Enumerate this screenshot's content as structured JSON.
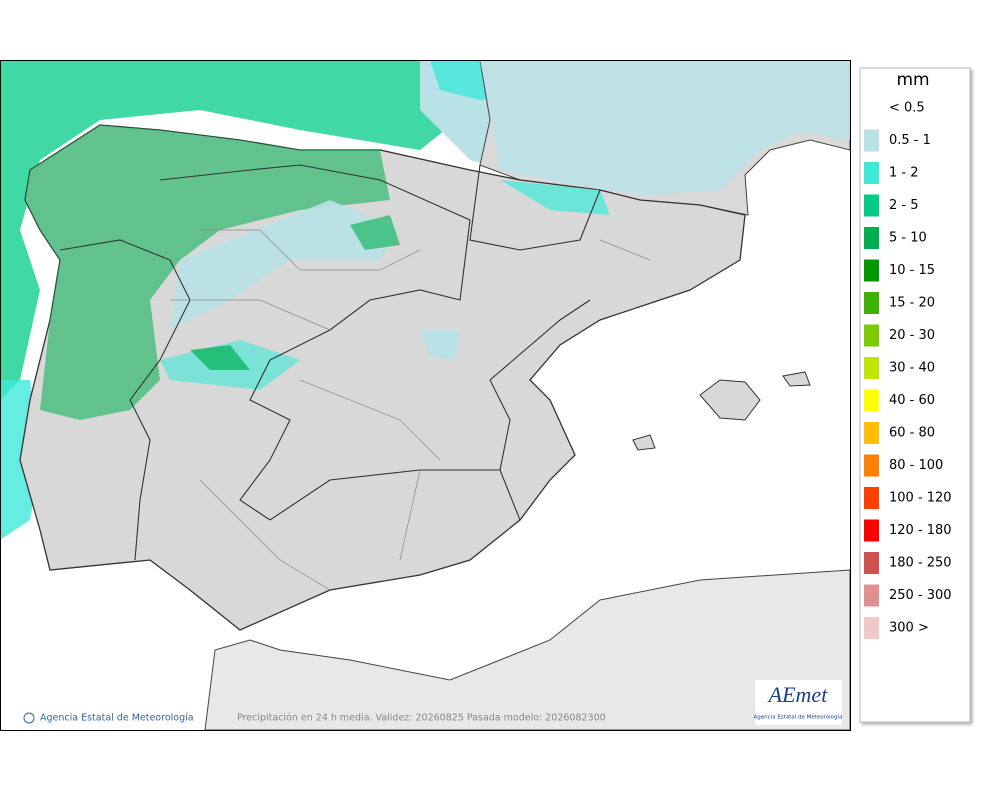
{
  "legend": {
    "title": "mm",
    "items": [
      {
        "label": "< 0.5",
        "color": "#ffffff"
      },
      {
        "label": "0.5 - 1",
        "color": "#b9e2e6"
      },
      {
        "label": "1 - 2",
        "color": "#3ee9d9"
      },
      {
        "label": "2 - 5",
        "color": "#00cc88"
      },
      {
        "label": "5 - 10",
        "color": "#00b050"
      },
      {
        "label": "10 - 15",
        "color": "#009a00"
      },
      {
        "label": "15 - 20",
        "color": "#3cb300"
      },
      {
        "label": "20 - 30",
        "color": "#7acc00"
      },
      {
        "label": "30 - 40",
        "color": "#c1e600"
      },
      {
        "label": "40 - 60",
        "color": "#ffff00"
      },
      {
        "label": "60 - 80",
        "color": "#ffbf00"
      },
      {
        "label": "80 - 100",
        "color": "#ff8000"
      },
      {
        "label": "100 - 120",
        "color": "#ff4000"
      },
      {
        "label": "120 - 180",
        "color": "#ff0000"
      },
      {
        "label": "180 - 250",
        "color": "#d05050"
      },
      {
        "label": "250 - 300",
        "color": "#e09090"
      },
      {
        "label": "300 >",
        "color": "#f0c8c8"
      }
    ]
  },
  "footer": {
    "credit": "Agencia Estatal de Meteorología",
    "caption": "Precipitación en 24 h media. Validez: 20260825 Pasada modelo: 2026082300"
  },
  "logo": {
    "text": "AEmet",
    "subtitle": "Agencia Estatal de Meteorología"
  }
}
